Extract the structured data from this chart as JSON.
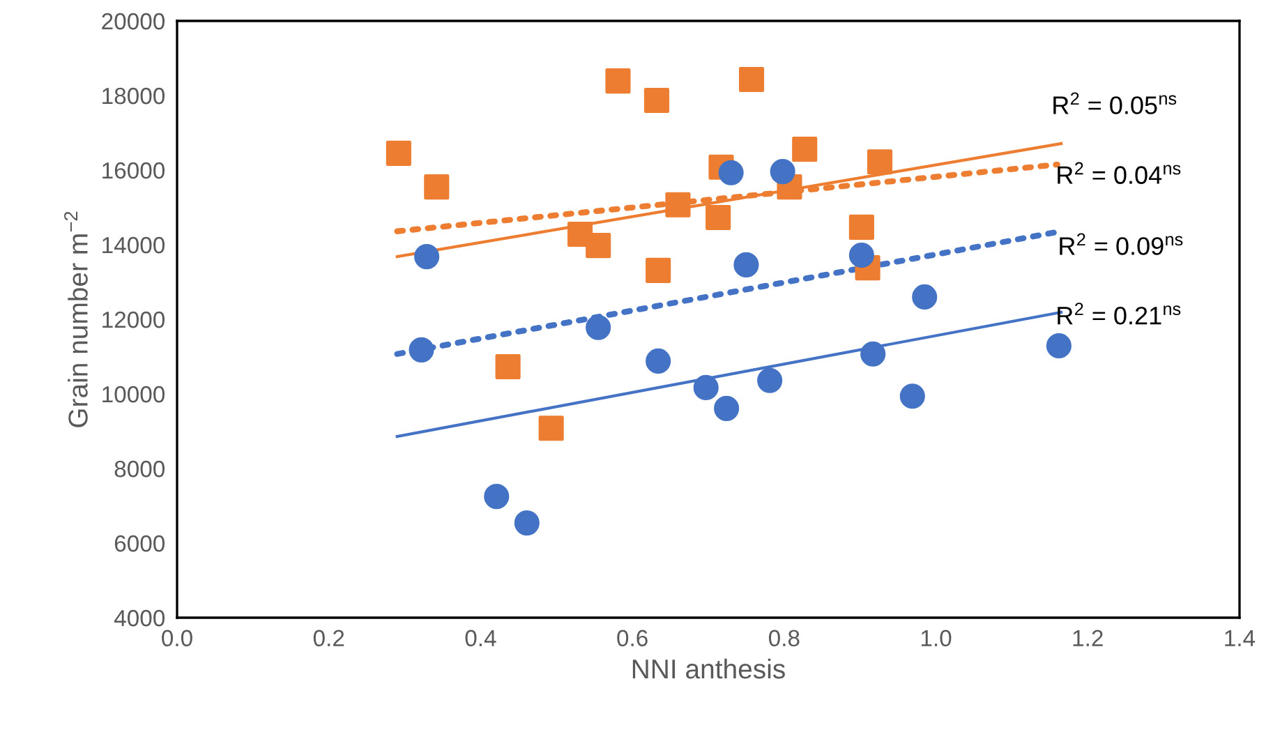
{
  "chart_data": {
    "type": "scatter",
    "xlabel": "NNI anthesis",
    "ylabel": "Grain number m$^{−2}$",
    "xlim": [
      0.0,
      1.4
    ],
    "xticks": [
      {
        "value": 0,
        "label": "0.0"
      },
      0.2,
      0.4,
      0.6,
      0.8,
      {
        "value": 1,
        "label": "1.0"
      },
      1.2,
      1.4
    ],
    "ylim": [
      4000,
      20000
    ],
    "yticks": [
      4000,
      6000,
      8000,
      10000,
      12000,
      14000,
      16000,
      18000,
      20000
    ],
    "grid": false,
    "legend": false,
    "series": [
      {
        "marker": "circle",
        "color": "#4472c4",
        "x": [
          0.322,
          0.461,
          0.697,
          0.724,
          0.781,
          0.969,
          0.902,
          1.162
        ],
        "values": [
          11180,
          6540,
          10170,
          9610,
          10360,
          9940,
          13720,
          11290
        ]
      },
      {
        "marker": "circle",
        "color": "#4472c4",
        "x": [
          0.555,
          0.634,
          0.421,
          0.917,
          0.985,
          0.329,
          0.73,
          0.798,
          0.75
        ],
        "values": [
          11780,
          10880,
          7250,
          11070,
          12600,
          13680,
          15930,
          15960,
          13460
        ]
      },
      {
        "marker": "square",
        "color": "#ed7d31",
        "x": [
          0.581,
          0.757,
          0.342,
          0.555,
          0.634,
          0.717,
          0.926,
          0.91,
          0.493
        ],
        "values": [
          18390,
          18430,
          15550,
          13980,
          13310,
          16080,
          16220,
          13380,
          9080
        ]
      },
      {
        "marker": "square",
        "color": "#ed7d31",
        "x": [
          0.292,
          0.632,
          0.827,
          0.66,
          0.713,
          0.807,
          0.531,
          0.902,
          0.436
        ],
        "values": [
          16450,
          17870,
          16560,
          15070,
          14730,
          15550,
          14280,
          14470,
          10730
        ]
      },
      {
        "type": "line",
        "line_style": "solid",
        "color": "#4472c4",
        "x": [
          0.29,
          1.165
        ],
        "values": [
          8860,
          12190
        ]
      },
      {
        "type": "line",
        "line_style": "dotted",
        "color": "#4472c4",
        "x": [
          0.29,
          1.165
        ],
        "values": [
          11070,
          14360
        ]
      },
      {
        "type": "line",
        "line_style": "solid",
        "color": "#ed7d31",
        "x": [
          0.29,
          1.165
        ],
        "values": [
          13680,
          16710
        ]
      },
      {
        "type": "line",
        "line_style": "dotted",
        "color": "#ed7d31",
        "x": [
          0.29,
          1.16
        ],
        "values": [
          14360,
          16150
        ]
      }
    ],
    "annotations": [
      "R$^{2}$ = 0.05$^{ns}$",
      "R$^{2}$ = 0.04$^{ns}$",
      "R$^{2}$ = 0.09$^{ns}$",
      "R$^{2}$ = 0.21$^{ns}$"
    ]
  }
}
